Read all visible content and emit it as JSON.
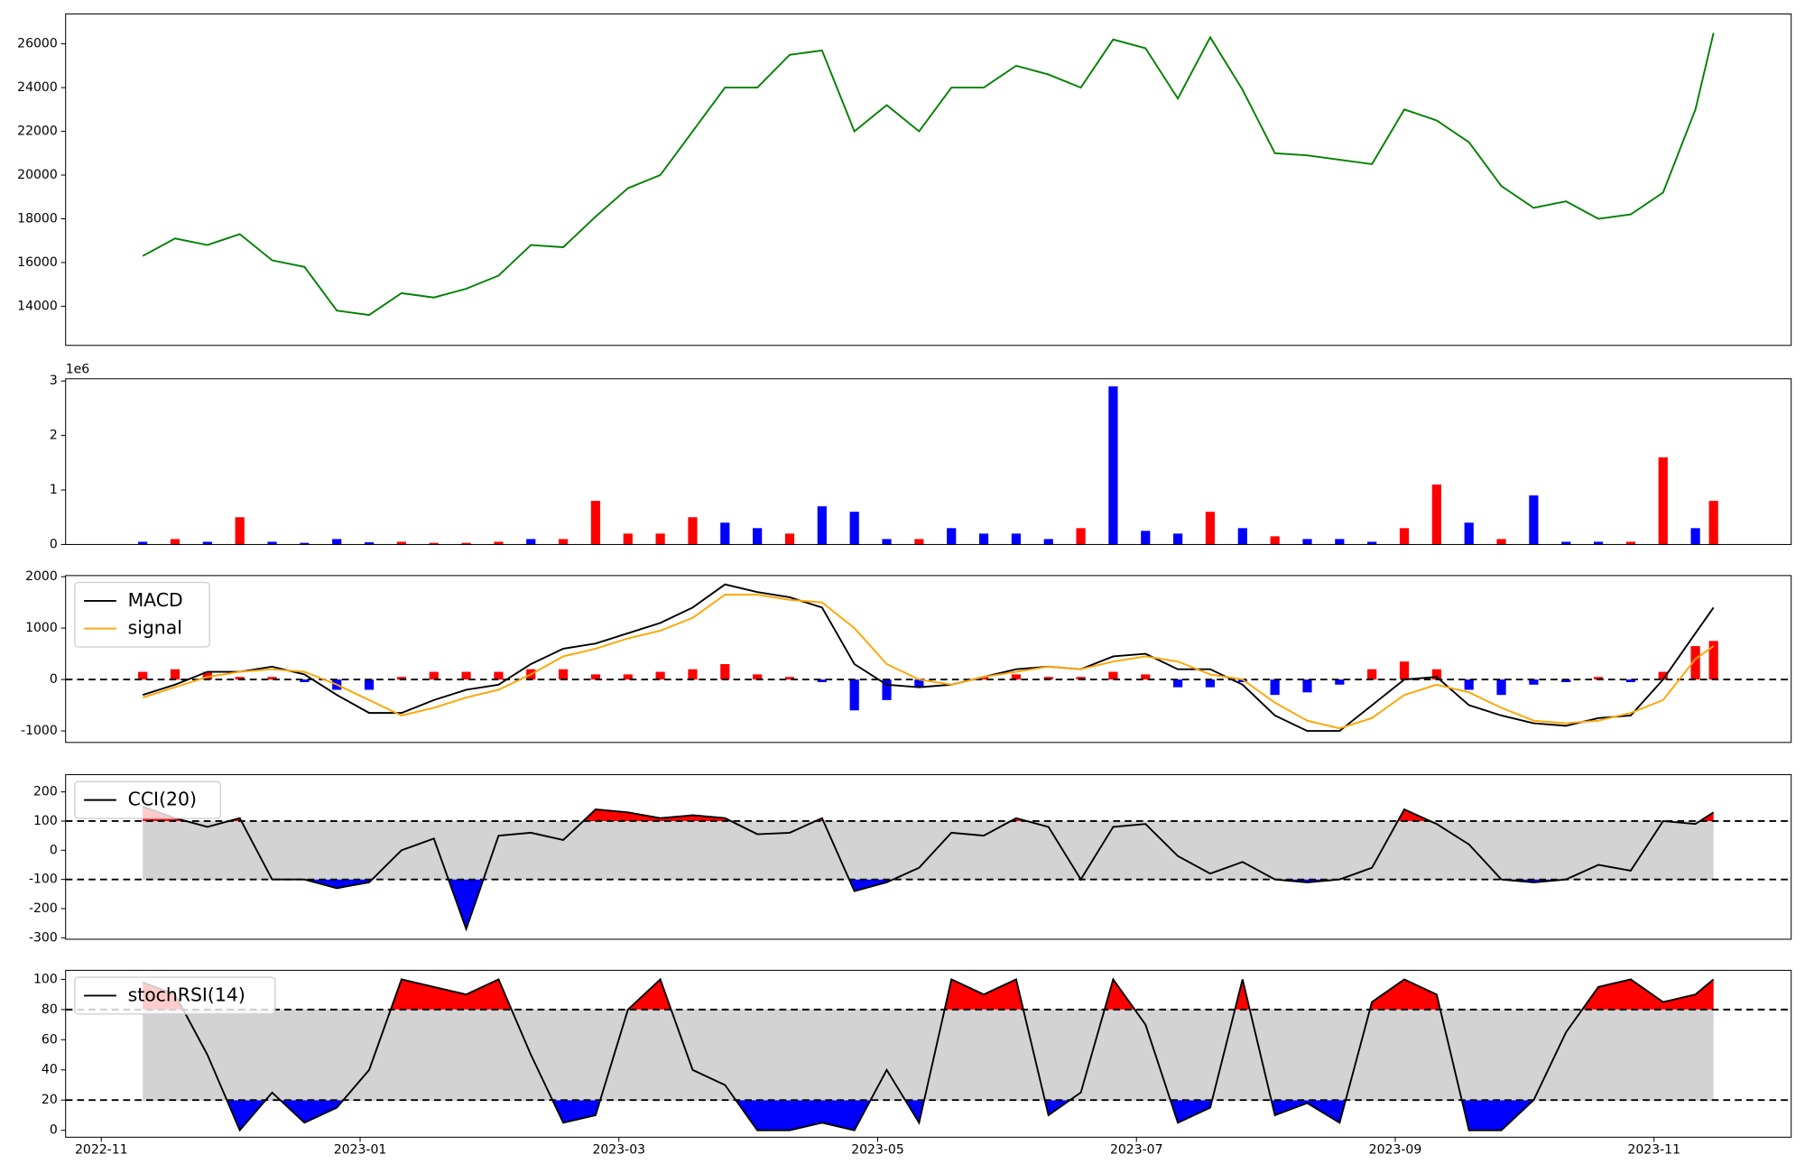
{
  "chart_data": [
    {
      "type": "line",
      "x": [
        0.32,
        0.57,
        0.82,
        1.07,
        1.32,
        1.57,
        1.82,
        2.07,
        2.32,
        2.57,
        2.82,
        3.07,
        3.32,
        3.57,
        3.82,
        4.07,
        4.32,
        4.57,
        4.82,
        5.07,
        5.32,
        5.57,
        5.82,
        6.07,
        6.32,
        6.57,
        6.82,
        7.07,
        7.32,
        7.57,
        7.82,
        8.07,
        8.32,
        8.57,
        8.82,
        9.07,
        9.32,
        9.57,
        9.82,
        10.07,
        10.32,
        10.57,
        10.82,
        11.07,
        11.32,
        11.57,
        11.82,
        12.07,
        12.32,
        12.46
      ],
      "series": [
        {
          "color": "green",
          "values": [
            16300,
            17100,
            16800,
            17300,
            16100,
            15800,
            13800,
            13600,
            14600,
            14400,
            14800,
            15400,
            16800,
            16700,
            18100,
            19400,
            20000,
            22000,
            24000,
            24000,
            25500,
            25700,
            22000,
            23200,
            22000,
            24000,
            24000,
            25000,
            24600,
            24000,
            26200,
            25800,
            23500,
            26300,
            23900,
            21000,
            20900,
            20700,
            20500,
            23000,
            22500,
            21500,
            19500,
            18500,
            18800,
            18000,
            18200,
            19200,
            23000,
            26500
          ]
        }
      ],
      "xlim": [
        -0.276,
        13.06
      ],
      "ylim": [
        12210,
        27370
      ],
      "yticks": [
        14000,
        16000,
        18000,
        20000,
        22000,
        24000,
        26000
      ]
    },
    {
      "type": "bar",
      "x": [
        0.32,
        0.57,
        0.82,
        1.07,
        1.32,
        1.57,
        1.82,
        2.07,
        2.32,
        2.57,
        2.82,
        3.07,
        3.32,
        3.57,
        3.82,
        4.07,
        4.32,
        4.57,
        4.82,
        5.07,
        5.32,
        5.57,
        5.82,
        6.07,
        6.32,
        6.57,
        6.82,
        7.07,
        7.32,
        7.57,
        7.82,
        8.07,
        8.32,
        8.57,
        8.82,
        9.07,
        9.32,
        9.57,
        9.82,
        10.07,
        10.32,
        10.57,
        10.82,
        11.07,
        11.32,
        11.57,
        11.82,
        12.07,
        12.32,
        12.46
      ],
      "series": [
        {
          "color": "red",
          "values": [
            null,
            0.1,
            null,
            0.5,
            null,
            null,
            null,
            null,
            0.05,
            0.03,
            0.03,
            0.05,
            null,
            0.1,
            0.8,
            0.2,
            0.2,
            0.5,
            null,
            null,
            0.2,
            null,
            null,
            null,
            0.1,
            null,
            null,
            null,
            null,
            0.3,
            null,
            null,
            null,
            0.6,
            null,
            0.15,
            null,
            null,
            null,
            0.3,
            1.1,
            null,
            0.1,
            null,
            null,
            null,
            0.05,
            1.6,
            null,
            0.8
          ]
        },
        {
          "color": "blue",
          "values": [
            0.05,
            null,
            0.05,
            null,
            0.05,
            0.03,
            0.1,
            0.04,
            null,
            null,
            null,
            null,
            0.1,
            null,
            null,
            null,
            null,
            null,
            0.4,
            0.3,
            null,
            0.7,
            0.6,
            0.1,
            null,
            0.3,
            0.2,
            0.2,
            0.1,
            null,
            2.9,
            0.25,
            0.2,
            null,
            0.3,
            null,
            0.1,
            0.1,
            0.05,
            null,
            null,
            0.4,
            null,
            0.9,
            0.05,
            0.05,
            null,
            null,
            0.3,
            null
          ]
        }
      ],
      "y_offset_label": "1e6",
      "xlim": [
        -0.276,
        13.06
      ],
      "ylim": [
        0,
        3.04
      ],
      "yticks": [
        0,
        1,
        2,
        3
      ]
    },
    {
      "type": "macd",
      "x": [
        0.32,
        0.57,
        0.82,
        1.07,
        1.32,
        1.57,
        1.82,
        2.07,
        2.32,
        2.57,
        2.82,
        3.07,
        3.32,
        3.57,
        3.82,
        4.07,
        4.32,
        4.57,
        4.82,
        5.07,
        5.32,
        5.57,
        5.82,
        6.07,
        6.32,
        6.57,
        6.82,
        7.07,
        7.32,
        7.57,
        7.82,
        8.07,
        8.32,
        8.57,
        8.82,
        9.07,
        9.32,
        9.57,
        9.82,
        10.07,
        10.32,
        10.57,
        10.82,
        11.07,
        11.32,
        11.57,
        11.82,
        12.07,
        12.32,
        12.46
      ],
      "series": [
        {
          "name": "MACD",
          "color": "black",
          "values": [
            -300,
            -100,
            150,
            150,
            250,
            100,
            -300,
            -650,
            -650,
            -400,
            -200,
            -100,
            300,
            600,
            700,
            900,
            1100,
            1400,
            1850,
            1700,
            1600,
            1400,
            300,
            -100,
            -150,
            -100,
            50,
            200,
            250,
            200,
            450,
            500,
            200,
            200,
            -100,
            -700,
            -1000,
            -1000,
            -500,
            0,
            50,
            -500,
            -700,
            -850,
            -900,
            -750,
            -700,
            0,
            900,
            1400
          ]
        },
        {
          "name": "signal",
          "color": "orange",
          "values": [
            -350,
            -150,
            50,
            150,
            200,
            150,
            -100,
            -400,
            -700,
            -550,
            -350,
            -200,
            100,
            450,
            600,
            800,
            950,
            1200,
            1650,
            1650,
            1550,
            1500,
            1000,
            300,
            0,
            -100,
            50,
            150,
            250,
            200,
            350,
            450,
            350,
            100,
            0,
            -450,
            -800,
            -950,
            -750,
            -300,
            -100,
            -250,
            -550,
            -800,
            -850,
            -800,
            -650,
            -400,
            400,
            650
          ]
        }
      ],
      "histogram": {
        "pos_color": "red",
        "neg_color": "blue",
        "values": [
          150,
          200,
          150,
          50,
          50,
          -50,
          -200,
          -200,
          50,
          150,
          150,
          150,
          200,
          200,
          100,
          100,
          150,
          200,
          300,
          100,
          50,
          -50,
          -600,
          -400,
          -150,
          0,
          50,
          100,
          50,
          50,
          150,
          100,
          -150,
          -150,
          -50,
          -300,
          -250,
          -100,
          200,
          350,
          200,
          -200,
          -300,
          -100,
          -50,
          50,
          -50,
          150,
          650,
          750
        ]
      },
      "hlines": [
        0
      ],
      "legend": "upper left",
      "xlim": [
        -0.276,
        13.06
      ],
      "ylim": [
        -1224,
        2022
      ],
      "yticks": [
        -1000,
        0,
        1000,
        2000
      ]
    },
    {
      "type": "oscillator",
      "x": [
        0.32,
        0.57,
        0.82,
        1.07,
        1.32,
        1.57,
        1.82,
        2.07,
        2.32,
        2.57,
        2.82,
        3.07,
        3.32,
        3.57,
        3.82,
        4.07,
        4.32,
        4.57,
        4.82,
        5.07,
        5.32,
        5.57,
        5.82,
        6.07,
        6.32,
        6.57,
        6.82,
        7.07,
        7.32,
        7.57,
        7.82,
        8.07,
        8.32,
        8.57,
        8.82,
        9.07,
        9.32,
        9.57,
        9.82,
        10.07,
        10.32,
        10.57,
        10.82,
        11.07,
        11.32,
        11.57,
        11.82,
        12.07,
        12.32,
        12.46
      ],
      "series": [
        {
          "name": "CCI(20)",
          "color": "black",
          "values": [
            150,
            110,
            80,
            110,
            -100,
            -100,
            -130,
            -110,
            0,
            40,
            -270,
            50,
            60,
            35,
            140,
            130,
            110,
            120,
            110,
            55,
            60,
            110,
            -140,
            -110,
            -60,
            60,
            50,
            110,
            80,
            -100,
            80,
            90,
            -20,
            -80,
            -40,
            -100,
            -110,
            -100,
            -60,
            140,
            90,
            20,
            -100,
            -110,
            -100,
            -50,
            -70,
            100,
            90,
            130
          ]
        }
      ],
      "bands": [
        -100,
        100
      ],
      "fill_colors": {
        "upper": "red",
        "middle": "lightgray",
        "lower": "blue"
      },
      "legend": "upper left",
      "xlim": [
        -0.276,
        13.06
      ],
      "ylim": [
        -305,
        259
      ],
      "yticks": [
        -300,
        -200,
        -100,
        0,
        100,
        200
      ]
    },
    {
      "type": "oscillator",
      "x": [
        0.32,
        0.57,
        0.82,
        1.07,
        1.32,
        1.57,
        1.82,
        2.07,
        2.32,
        2.57,
        2.82,
        3.07,
        3.32,
        3.57,
        3.82,
        4.07,
        4.32,
        4.57,
        4.82,
        5.07,
        5.32,
        5.57,
        5.82,
        6.07,
        6.32,
        6.57,
        6.82,
        7.07,
        7.32,
        7.57,
        7.82,
        8.07,
        8.32,
        8.57,
        8.82,
        9.07,
        9.32,
        9.57,
        9.82,
        10.07,
        10.32,
        10.57,
        10.82,
        11.07,
        11.32,
        11.57,
        11.82,
        12.07,
        12.32,
        12.46
      ],
      "series": [
        {
          "name": "stochRSI(14)",
          "color": "black",
          "values": [
            98,
            90,
            50,
            0,
            25,
            5,
            15,
            40,
            100,
            95,
            90,
            100,
            50,
            5,
            10,
            80,
            100,
            40,
            30,
            0,
            0,
            5,
            0,
            40,
            5,
            100,
            90,
            100,
            10,
            25,
            100,
            70,
            5,
            15,
            100,
            10,
            18,
            5,
            85,
            100,
            90,
            0,
            0,
            20,
            65,
            95,
            100,
            85,
            90,
            100
          ]
        }
      ],
      "bands": [
        20,
        80
      ],
      "fill_colors": {
        "upper": "red",
        "middle": "lightgray",
        "lower": "blue"
      },
      "legend": "upper left",
      "xlim": [
        -0.276,
        13.06
      ],
      "ylim": [
        -4.6,
        106
      ],
      "yticks": [
        0,
        20,
        40,
        60,
        80,
        100
      ],
      "xticks": [
        {
          "value": 0,
          "label": "2022-11"
        },
        {
          "value": 2,
          "label": "2023-01"
        },
        {
          "value": 4,
          "label": "2023-03"
        },
        {
          "value": 6,
          "label": "2023-05"
        },
        {
          "value": 8,
          "label": "2023-07"
        },
        {
          "value": 10,
          "label": "2023-09"
        },
        {
          "value": 12,
          "label": "2023-11"
        }
      ]
    }
  ]
}
